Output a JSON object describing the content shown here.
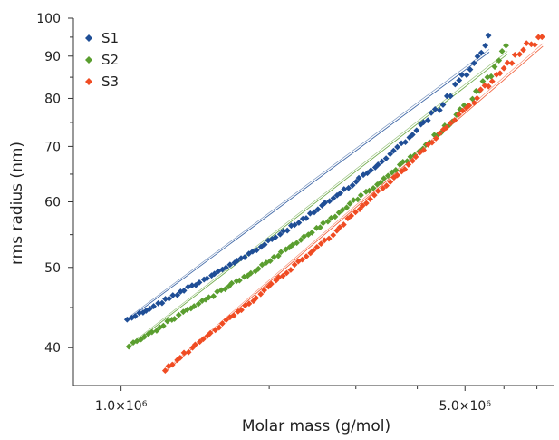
{
  "chart_data": {
    "type": "scatter",
    "xlabel": "Molar mass (g/mol)",
    "ylabel": "rms radius (nm)",
    "x_scale": "log",
    "y_scale": "log",
    "xlim": [
      800000,
      7600000
    ],
    "ylim": [
      36000,
      100000
    ],
    "x_ticks": [
      {
        "value": 1000000,
        "label": "1.0×10⁶"
      },
      {
        "value": 5000000,
        "label": "5.0×10⁶"
      }
    ],
    "x_minor_ticks": [
      2000000,
      3000000,
      4000000,
      6000000,
      7000000
    ],
    "y_ticks": [
      {
        "value": 40000,
        "label": "40"
      },
      {
        "value": 50000,
        "label": "50"
      },
      {
        "value": 60000,
        "label": "60"
      },
      {
        "value": 70000,
        "label": "70"
      },
      {
        "value": 80000,
        "label": "80"
      },
      {
        "value": 90000,
        "label": "90"
      },
      {
        "value": 100000,
        "label": "100"
      }
    ],
    "grid": false,
    "legend_position": "top-left",
    "series": [
      {
        "name": "S1",
        "color": "#1f4e96",
        "marker": "diamond",
        "x": [
          1030000,
          1100000,
          1200000,
          1320000,
          1450000,
          1600000,
          1780000,
          2000000,
          2250000,
          2500000,
          2800000,
          3100000,
          3400000,
          3750000,
          4100000,
          4450000,
          4700000,
          4900000,
          5100000,
          5350000,
          5600000
        ],
        "y": [
          43300,
          44100,
          45300,
          46700,
          48100,
          49700,
          51400,
          53800,
          56300,
          58700,
          61500,
          64500,
          67200,
          70800,
          74300,
          78000,
          81500,
          84700,
          86000,
          90400,
          95000
        ],
        "fit": {
          "x": [
            1030000,
            5600000
          ],
          "y": [
            43200,
            91000
          ]
        }
      },
      {
        "name": "S2",
        "color": "#5a9e2f",
        "marker": "diamond",
        "x": [
          1040000,
          1120000,
          1250000,
          1400000,
          1550000,
          1750000,
          2000000,
          2250000,
          2500000,
          2800000,
          3100000,
          3450000,
          3800000,
          4200000,
          4600000,
          5000000,
          5400000,
          5800000,
          6100000
        ],
        "y": [
          40200,
          41300,
          43000,
          44900,
          46400,
          48400,
          50800,
          53400,
          55700,
          58500,
          61200,
          64300,
          67300,
          70500,
          74000,
          78000,
          82500,
          87500,
          93000
        ],
        "fit": {
          "x": [
            1040000,
            6100000
          ],
          "y": [
            40100,
            90500
          ]
        }
      },
      {
        "name": "S3",
        "color": "#f04c23",
        "marker": "diamond",
        "x": [
          1230000,
          1300000,
          1420000,
          1580000,
          1750000,
          1950000,
          2150000,
          2400000,
          2700000,
          3000000,
          3350000,
          3700000,
          4100000,
          4550000,
          5000000,
          5300000,
          5600000,
          5950000,
          6300000,
          6700000,
          7200000
        ],
        "y": [
          37500,
          38700,
          40300,
          42400,
          44500,
          46800,
          49100,
          51900,
          54900,
          58300,
          61800,
          65100,
          69200,
          73500,
          77800,
          80500,
          83500,
          86400,
          89800,
          92500,
          95000
        ],
        "fit": {
          "x": [
            1230000,
            7200000
          ],
          "y": [
            37400,
            92500
          ]
        }
      }
    ]
  }
}
